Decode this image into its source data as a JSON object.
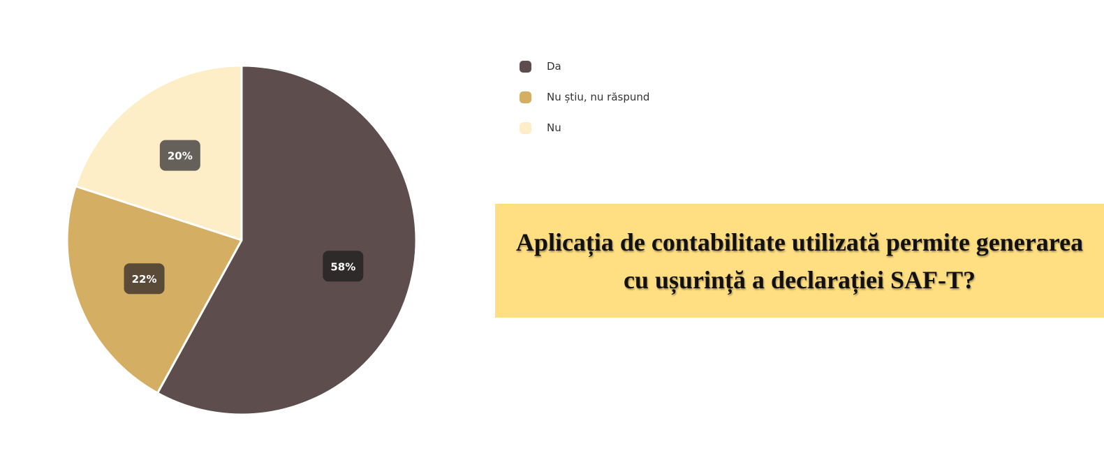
{
  "chart_data": {
    "type": "pie",
    "title": "Aplicația de contabilitate utilizată permite generarea cu ușurință a declarației SAF-T?",
    "slices": [
      {
        "label": "Da",
        "value": 58,
        "display": "58%",
        "color": "#5e4d4d",
        "badge_color": "#2e2a29"
      },
      {
        "label": "Nu știu, nu răspund",
        "value": 22,
        "display": "22%",
        "color": "#d4ae62",
        "badge_color": "#5a4b39"
      },
      {
        "label": "Nu",
        "value": 20,
        "display": "20%",
        "color": "#feeec8",
        "badge_color": "#65605a"
      }
    ],
    "legend_position": "top-right",
    "label_color": "#ffffff",
    "separator_color": "#ffffff"
  },
  "title_box_color": "#ffdf81"
}
